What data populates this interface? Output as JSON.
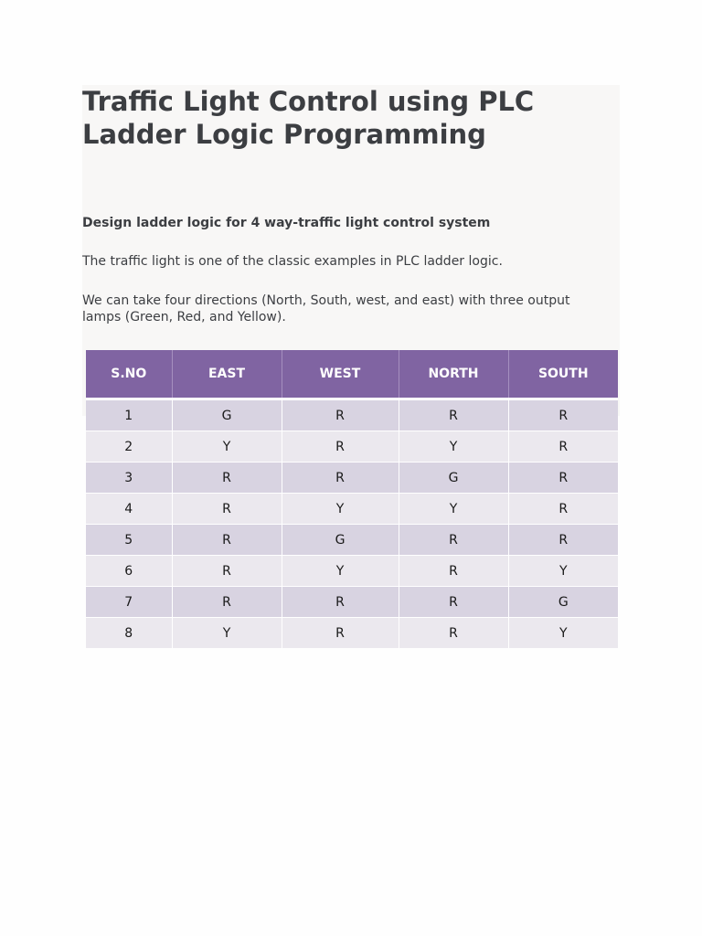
{
  "article": {
    "title": "Traffic Light Control using PLC Ladder Logic Programming",
    "subtitle": "Design ladder logic for 4 way-traffic light control system",
    "paragraph1": "The traffic light is one of the classic examples in PLC ladder logic.",
    "paragraph2": "We can take four directions (North, South, west, and east) with three output lamps (Green, Red, and Yellow)."
  },
  "table": {
    "headers": [
      "S.NO",
      "EAST",
      "WEST",
      "NORTH",
      "SOUTH"
    ],
    "rows": [
      [
        "1",
        "G",
        "R",
        "R",
        "R"
      ],
      [
        "2",
        "Y",
        "R",
        "Y",
        "R"
      ],
      [
        "3",
        "R",
        "R",
        "G",
        "R"
      ],
      [
        "4",
        "R",
        "Y",
        "Y",
        "R"
      ],
      [
        "5",
        "R",
        "G",
        "R",
        "R"
      ],
      [
        "6",
        "R",
        "Y",
        "R",
        "Y"
      ],
      [
        "7",
        "R",
        "R",
        "R",
        "G"
      ],
      [
        "8",
        "Y",
        "R",
        "R",
        "Y"
      ]
    ]
  },
  "colors": {
    "header_bg": "#8064a2",
    "row_odd": "#d8d3e1",
    "row_even": "#ebe8ee",
    "text": "#3c3e42"
  }
}
